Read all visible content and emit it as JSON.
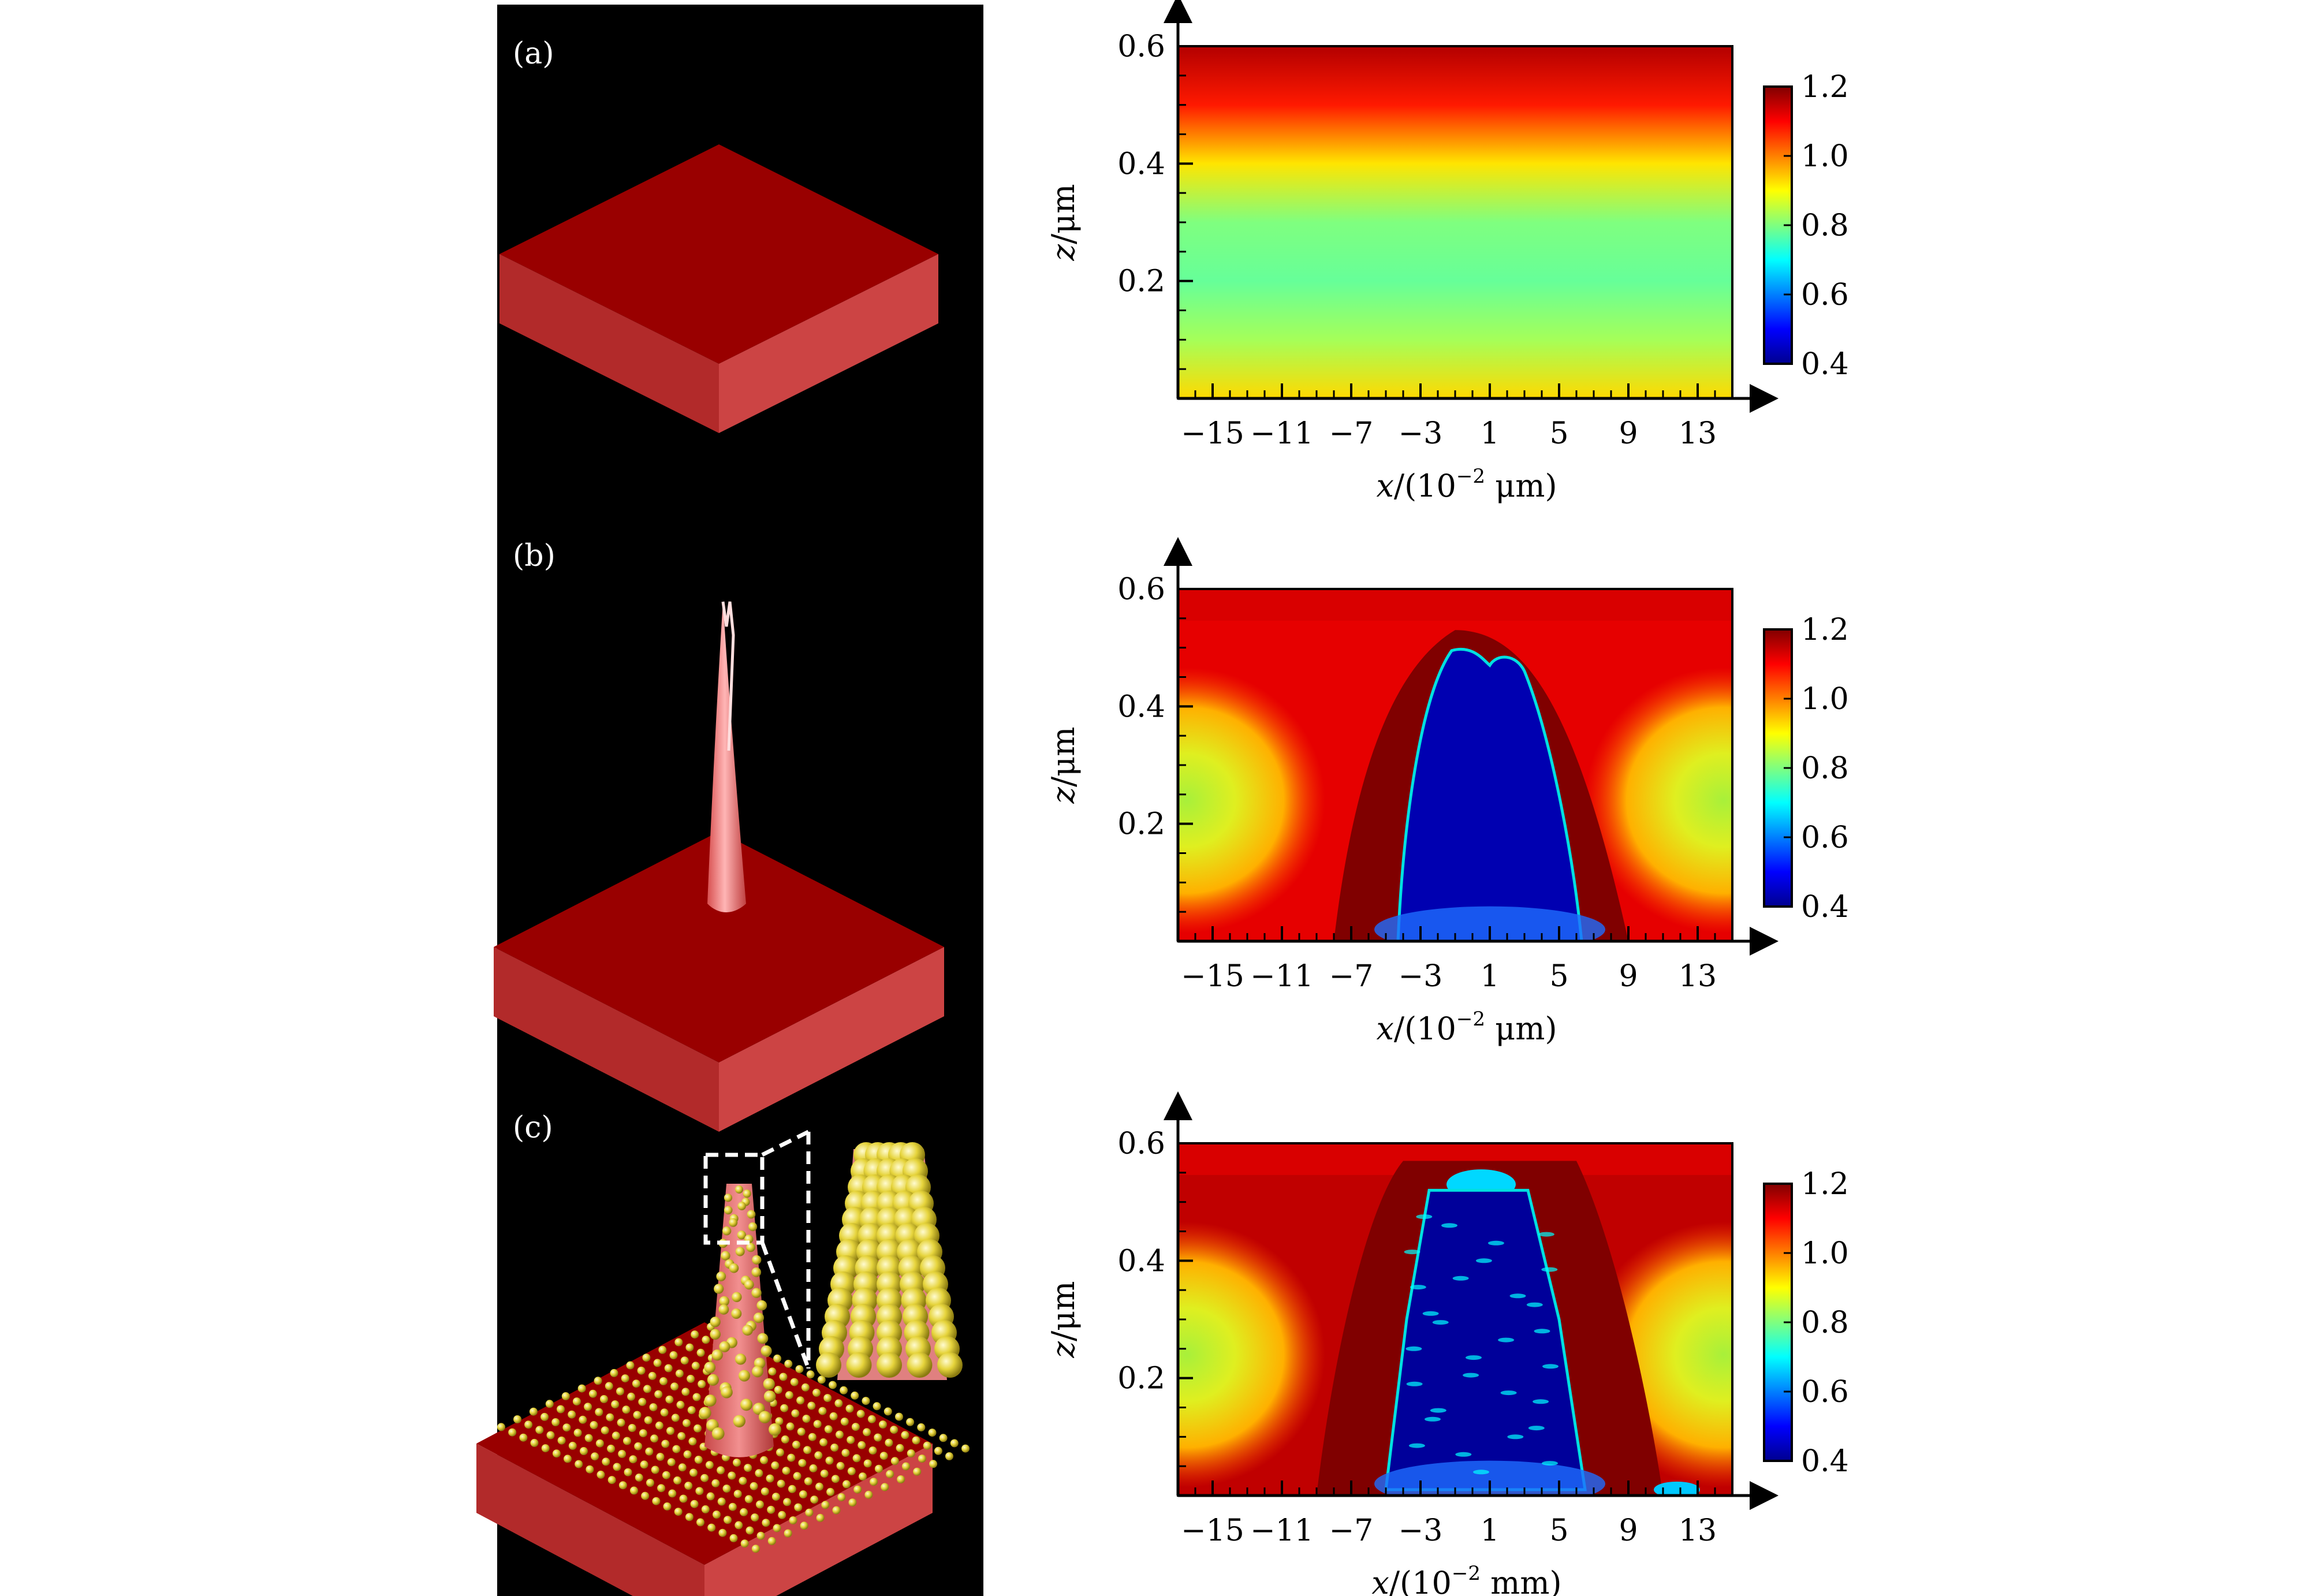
{
  "figure": {
    "panels": [
      {
        "label": "(a)",
        "structure": "flat-slab"
      },
      {
        "label": "(b)",
        "structure": "slab-with-hollow-cone-tip"
      },
      {
        "label": "(c)",
        "structure": "slab-with-nanoparticle-coated-cone",
        "has_inset": true
      }
    ],
    "colors": {
      "background_left": "#000000",
      "slab_top": "#990000",
      "slab_front": "#b22a2a",
      "slab_side": "#cc4444",
      "particle": "#e8d84a"
    }
  },
  "colorbar": {
    "ticks": [
      "0.4",
      "0.6",
      "0.8",
      "1.0",
      "1.2"
    ],
    "range": [
      0.4,
      1.2
    ],
    "colormap": "jet"
  },
  "chart_data": [
    {
      "type": "heatmap",
      "panel": "(a)",
      "xlabel_main": "x",
      "xlabel_unit_pre": "/(10",
      "xlabel_exp": "−2",
      "xlabel_unit_post": " μm)",
      "ylabel_main": "z",
      "ylabel_unit": "/μm",
      "x_ticks": [
        "−15",
        "−11",
        "−7",
        "−3",
        "1",
        "5",
        "9",
        "13"
      ],
      "y_ticks": [
        "0.2",
        "0.4",
        "0.6"
      ],
      "xlim": [
        -17,
        15
      ],
      "ylim": [
        0,
        0.6
      ],
      "profile_z": [
        0.0,
        0.1,
        0.2,
        0.3,
        0.4,
        0.5,
        0.6
      ],
      "profile_value": [
        0.93,
        0.83,
        0.78,
        0.8,
        0.92,
        1.08,
        1.16
      ]
    },
    {
      "type": "heatmap",
      "panel": "(b)",
      "xlabel_main": "x",
      "xlabel_unit_pre": "/(10",
      "xlabel_exp": "−2",
      "xlabel_unit_post": " μm)",
      "ylabel_main": "z",
      "ylabel_unit": "/μm",
      "x_ticks": [
        "−15",
        "−11",
        "−7",
        "−3",
        "1",
        "5",
        "9",
        "13"
      ],
      "y_ticks": [
        "0.2",
        "0.4",
        "0.6"
      ],
      "xlim": [
        -17,
        15
      ],
      "ylim": [
        0,
        0.6
      ],
      "inner_region_value": 0.43,
      "outer_region_value": 1.12,
      "side_lobe_value": 0.86
    },
    {
      "type": "heatmap",
      "panel": "(c)",
      "xlabel_main": "x",
      "xlabel_unit_pre": "/(10",
      "xlabel_exp": "−2",
      "xlabel_unit_post": " mm)",
      "ylabel_main": "z",
      "ylabel_unit": "/μm",
      "x_ticks": [
        "−15",
        "−11",
        "−7",
        "−3",
        "1",
        "5",
        "9",
        "13"
      ],
      "y_ticks": [
        "0.2",
        "0.4",
        "0.6"
      ],
      "xlim": [
        -17,
        15
      ],
      "ylim": [
        0,
        0.6
      ],
      "inner_region_value": 0.41,
      "outer_region_value": 1.15,
      "side_lobe_value": 0.84
    }
  ]
}
